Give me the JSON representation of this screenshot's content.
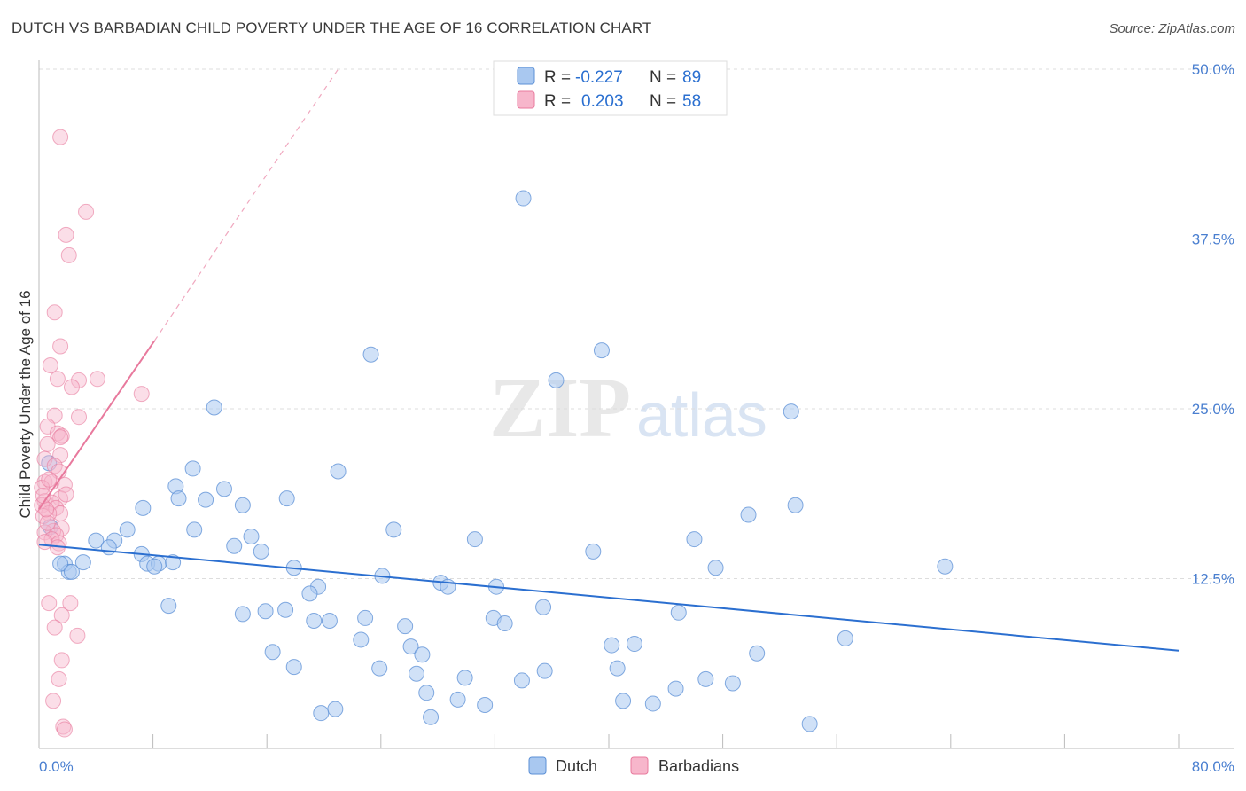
{
  "header": {
    "title": "DUTCH VS BARBADIAN CHILD POVERTY UNDER THE AGE OF 16 CORRELATION CHART",
    "source": "Source: ZipAtlas.com"
  },
  "watermark": {
    "zip": "ZIP",
    "atlas": "atlas"
  },
  "legend": {
    "r_label": "R =",
    "n_label": "N =",
    "dutch": {
      "r": "-0.227",
      "n": "89",
      "color": "#a9c8f0"
    },
    "barbadians": {
      "r": "0.203",
      "n": "58",
      "color": "#f7b6cb"
    }
  },
  "bottom_legend": {
    "dutch": "Dutch",
    "barbadians": "Barbadians"
  },
  "chart_data": {
    "type": "scatter",
    "title": "DUTCH VS BARBADIAN CHILD POVERTY UNDER THE AGE OF 16 CORRELATION CHART",
    "ylabel": "Child Poverty Under the Age of 16",
    "xlim": [
      0,
      80
    ],
    "ylim": [
      0,
      50
    ],
    "x_tick_labels": [
      "0.0%",
      "80.0%"
    ],
    "y_ticks": [
      12.5,
      25.0,
      37.5,
      50.0
    ],
    "y_tick_labels": [
      "12.5%",
      "25.0%",
      "37.5%",
      "50.0%"
    ],
    "grid": "horizontal dashed",
    "legend_position": "top-center",
    "series": [
      {
        "name": "Dutch",
        "color": "#5b8fd6",
        "trend": {
          "x": [
            0,
            80
          ],
          "y": [
            15.0,
            7.2
          ]
        },
        "points": [
          [
            34,
            40.5
          ],
          [
            23.3,
            29
          ],
          [
            39.5,
            29.3
          ],
          [
            36.3,
            27.1
          ],
          [
            12.3,
            25.1
          ],
          [
            52.8,
            24.8
          ],
          [
            10.8,
            20.6
          ],
          [
            21,
            20.4
          ],
          [
            9.6,
            19.3
          ],
          [
            13,
            19.1
          ],
          [
            11.7,
            18.3
          ],
          [
            9.8,
            18.4
          ],
          [
            17.4,
            18.4
          ],
          [
            14.3,
            17.9
          ],
          [
            7.3,
            17.7
          ],
          [
            53.1,
            17.9
          ],
          [
            49.8,
            17.2
          ],
          [
            6.2,
            16.1
          ],
          [
            10.9,
            16.1
          ],
          [
            24.9,
            16.1
          ],
          [
            4,
            15.3
          ],
          [
            5.3,
            15.3
          ],
          [
            30.6,
            15.4
          ],
          [
            46,
            15.4
          ],
          [
            14.9,
            15.6
          ],
          [
            4.9,
            14.8
          ],
          [
            13.7,
            14.9
          ],
          [
            15.6,
            14.5
          ],
          [
            7.2,
            14.3
          ],
          [
            38.9,
            14.5
          ],
          [
            1.8,
            13.6
          ],
          [
            3.1,
            13.7
          ],
          [
            7.6,
            13.6
          ],
          [
            8.4,
            13.6
          ],
          [
            9.4,
            13.7
          ],
          [
            8.1,
            13.4
          ],
          [
            2.1,
            13
          ],
          [
            17.9,
            13.3
          ],
          [
            47.5,
            13.3
          ],
          [
            63.6,
            13.4
          ],
          [
            24.1,
            12.7
          ],
          [
            28.2,
            12.2
          ],
          [
            28.7,
            11.9
          ],
          [
            32.1,
            11.9
          ],
          [
            19.6,
            11.9
          ],
          [
            19,
            11.4
          ],
          [
            9.1,
            10.5
          ],
          [
            14.3,
            9.9
          ],
          [
            15.9,
            10.1
          ],
          [
            17.3,
            10.2
          ],
          [
            35.4,
            10.4
          ],
          [
            44.9,
            10
          ],
          [
            22.9,
            9.6
          ],
          [
            19.3,
            9.4
          ],
          [
            20.4,
            9.4
          ],
          [
            31.9,
            9.6
          ],
          [
            32.7,
            9.2
          ],
          [
            25.7,
            9
          ],
          [
            22.6,
            8
          ],
          [
            56.6,
            8.1
          ],
          [
            26.1,
            7.5
          ],
          [
            40.2,
            7.6
          ],
          [
            41.8,
            7.7
          ],
          [
            16.4,
            7.1
          ],
          [
            26.9,
            6.9
          ],
          [
            50.4,
            7
          ],
          [
            17.9,
            6
          ],
          [
            23.9,
            5.9
          ],
          [
            40.6,
            5.9
          ],
          [
            35.5,
            5.7
          ],
          [
            26.5,
            5.5
          ],
          [
            29.9,
            5.2
          ],
          [
            33.9,
            5
          ],
          [
            46.8,
            5.1
          ],
          [
            44.7,
            4.4
          ],
          [
            48.7,
            4.8
          ],
          [
            27.2,
            4.1
          ],
          [
            29.4,
            3.6
          ],
          [
            31.3,
            3.2
          ],
          [
            41,
            3.5
          ],
          [
            43.1,
            3.3
          ],
          [
            20.8,
            2.9
          ],
          [
            19.8,
            2.6
          ],
          [
            27.5,
            2.3
          ],
          [
            54.1,
            1.8
          ],
          [
            0.8,
            16.3
          ],
          [
            0.7,
            21
          ],
          [
            1.5,
            13.6
          ],
          [
            2.3,
            13
          ]
        ]
      },
      {
        "name": "Barbadians",
        "color": "#e8799d",
        "trend": {
          "x": [
            0,
            8.1
          ],
          "y": [
            17.6,
            30
          ]
        },
        "trend_extended": {
          "x": [
            8.1,
            21
          ],
          "y": [
            30,
            50
          ]
        },
        "points": [
          [
            1.5,
            45
          ],
          [
            3.3,
            39.5
          ],
          [
            1.9,
            37.8
          ],
          [
            2.1,
            36.3
          ],
          [
            1.1,
            32.1
          ],
          [
            1.5,
            29.6
          ],
          [
            0.8,
            28.2
          ],
          [
            1.3,
            27.2
          ],
          [
            2.8,
            27.1
          ],
          [
            4.1,
            27.2
          ],
          [
            2.3,
            26.6
          ],
          [
            7.2,
            26.1
          ],
          [
            1.1,
            24.5
          ],
          [
            2.8,
            24.4
          ],
          [
            0.6,
            23.7
          ],
          [
            1.3,
            23.2
          ],
          [
            1.6,
            23
          ],
          [
            1.5,
            22.9
          ],
          [
            0.6,
            22.4
          ],
          [
            1.5,
            21.6
          ],
          [
            0.4,
            21.3
          ],
          [
            1.1,
            20.8
          ],
          [
            1.4,
            20.4
          ],
          [
            0.4,
            19.6
          ],
          [
            0.9,
            19.6
          ],
          [
            1.8,
            19.4
          ],
          [
            0.2,
            19.2
          ],
          [
            1.5,
            18.4
          ],
          [
            0.4,
            18.2
          ],
          [
            0.9,
            18.1
          ],
          [
            0.2,
            17.9
          ],
          [
            1.2,
            17.7
          ],
          [
            1.5,
            17.3
          ],
          [
            0.7,
            17.3
          ],
          [
            0.3,
            17.1
          ],
          [
            1.6,
            16.2
          ],
          [
            1,
            16
          ],
          [
            0.4,
            15.9
          ],
          [
            1.2,
            15.7
          ],
          [
            0.9,
            15.4
          ],
          [
            0.4,
            15.2
          ],
          [
            1.4,
            15.1
          ],
          [
            0.7,
            10.7
          ],
          [
            2.2,
            10.7
          ],
          [
            1.6,
            9.8
          ],
          [
            1.1,
            8.9
          ],
          [
            2.7,
            8.3
          ],
          [
            1.6,
            6.5
          ],
          [
            1.4,
            5.1
          ],
          [
            1,
            3.5
          ],
          [
            1.7,
            1.6
          ],
          [
            1.8,
            1.4
          ],
          [
            0.6,
            16.6
          ],
          [
            0.5,
            17.6
          ],
          [
            0.3,
            18.6
          ],
          [
            1.9,
            18.7
          ],
          [
            0.7,
            19.8
          ],
          [
            1.3,
            14.8
          ]
        ]
      }
    ]
  }
}
